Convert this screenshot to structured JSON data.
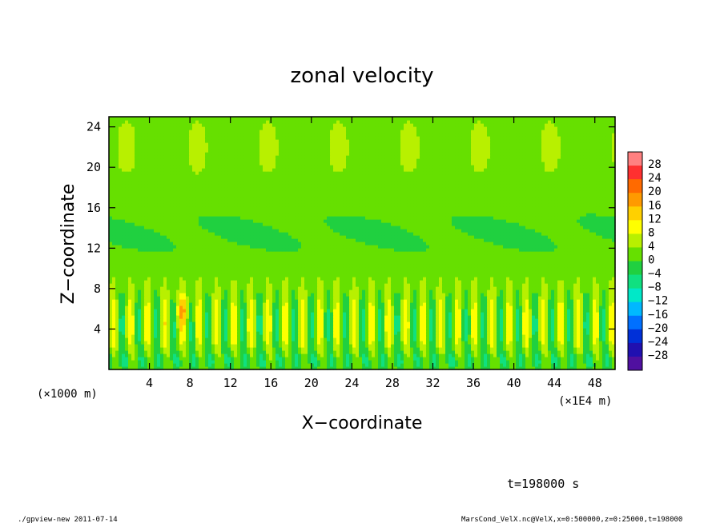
{
  "chart_data": {
    "type": "heatmap",
    "title": "zonal velocity",
    "xlabel": "X−coordinate",
    "ylabel": "Z−coordinate",
    "x_unit_left": "(×1000 m)",
    "x_unit_right": "(×1E4 m)",
    "xlim": [
      0,
      50
    ],
    "ylim": [
      0,
      25
    ],
    "x_ticks": [
      4,
      8,
      12,
      16,
      20,
      24,
      28,
      32,
      36,
      40,
      44,
      48
    ],
    "x_tick_labels": [
      "4",
      "8",
      "12",
      "16",
      "20",
      "24",
      "28",
      "32",
      "36",
      "40",
      "44",
      "48"
    ],
    "y_ticks": [
      4,
      8,
      12,
      16,
      20,
      24
    ],
    "y_tick_labels": [
      "4",
      "8",
      "12",
      "16",
      "20",
      "24"
    ],
    "colorbar": {
      "levels": [
        28,
        24,
        20,
        16,
        12,
        8,
        4,
        0,
        -4,
        -8,
        -12,
        -16,
        -20,
        -24,
        -28
      ],
      "labels": [
        "28",
        "24",
        "20",
        "16",
        "12",
        "8",
        "4",
        "0",
        "−4",
        "−8",
        "−12",
        "−16",
        "−20",
        "−24",
        "−28"
      ],
      "colors": [
        "#ff8080",
        "#ff3030",
        "#ff6a00",
        "#ff9a00",
        "#ffd000",
        "#ffff00",
        "#b8f000",
        "#66e000",
        "#20d040",
        "#10e080",
        "#00e8c8",
        "#00b8ff",
        "#0070ff",
        "#0030d8",
        "#2010b0",
        "#5010a0"
      ]
    },
    "field_description": "Background mostly +2 to +4 (green) above z=12; band of -4 to -8 near z=12-16; oscillating +/-8 to +12 plumes below z=8 with periodic spacing ~1.7e4 m.",
    "field_samples": {
      "z": [
        1,
        3,
        5,
        7,
        10,
        13,
        16,
        20,
        24
      ],
      "typical_values": [
        -8,
        6,
        6,
        2,
        0,
        -4,
        -2,
        2,
        4
      ]
    }
  },
  "footer": {
    "time": "t=198000 s",
    "program": "./gpview-new   2011-07-14",
    "source": "MarsCond_VelX.nc@VelX,x=0:500000,z=0:25000,t=198000"
  }
}
